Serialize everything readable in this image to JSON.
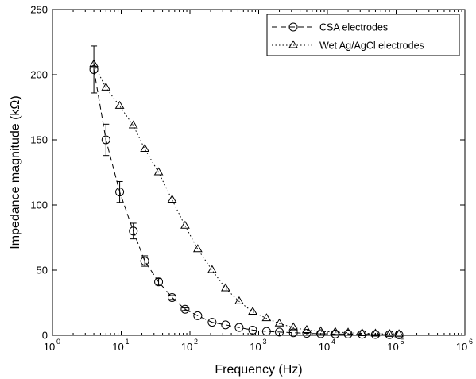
{
  "chart_data": {
    "type": "line",
    "title": "",
    "xlabel": "Frequency (Hz)",
    "ylabel": "Impedance magnitude (kΩ)",
    "xscale": "log",
    "xlim": [
      1,
      1000000
    ],
    "ylim": [
      0,
      250
    ],
    "x_ticks": [
      {
        "base": "10",
        "exp": "0"
      },
      {
        "base": "10",
        "exp": "1"
      },
      {
        "base": "10",
        "exp": "2"
      },
      {
        "base": "10",
        "exp": "3"
      },
      {
        "base": "10",
        "exp": "4"
      },
      {
        "base": "10",
        "exp": "5"
      },
      {
        "base": "10",
        "exp": "6"
      }
    ],
    "y_ticks": [
      "0",
      "50",
      "100",
      "150",
      "200",
      "250"
    ],
    "grid": false,
    "legend_position": "top-right",
    "colors": {
      "line": "#000000",
      "background": "#ffffff"
    },
    "series": [
      {
        "name": "CSA electrodes",
        "line_style": "dashed",
        "marker": "circle",
        "x": [
          4,
          6,
          9.5,
          15,
          22,
          35,
          55,
          85,
          130,
          210,
          330,
          520,
          820,
          1300,
          2000,
          3200,
          5000,
          8000,
          13000,
          20000,
          32000,
          50000,
          80000,
          110000
        ],
        "y": [
          204,
          150,
          110,
          80,
          57,
          41,
          29,
          20,
          15,
          10,
          8,
          6,
          4,
          3,
          2.5,
          2,
          1.5,
          1.2,
          1,
          1,
          0.8,
          0.6,
          0.5,
          0.4
        ],
        "error": [
          18,
          12,
          8,
          6,
          4,
          2.5,
          1.5,
          1,
          0.5,
          0.4,
          0.3,
          0.2,
          0.2,
          0.2,
          0.1,
          0.1,
          0.1,
          0.1,
          0.1,
          0.1,
          0.1,
          0.1,
          0.1,
          0.1
        ]
      },
      {
        "name": "Wet Ag/AgCl electrodes",
        "line_style": "dotted",
        "marker": "triangle",
        "x": [
          4,
          6,
          9.5,
          15,
          22,
          35,
          55,
          85,
          130,
          210,
          330,
          520,
          820,
          1300,
          2000,
          3200,
          5000,
          8000,
          13000,
          20000,
          32000,
          50000,
          80000,
          110000
        ],
        "y": [
          208,
          190,
          176,
          161,
          143,
          125,
          104,
          84,
          66,
          50,
          36,
          26,
          18,
          13,
          9,
          6,
          4,
          3,
          2.5,
          2,
          1.5,
          1.2,
          1,
          0.8
        ],
        "error": [
          0,
          0,
          0,
          0,
          0,
          0,
          0,
          0,
          0,
          0,
          0,
          0,
          0,
          0,
          0,
          0,
          0,
          0,
          0,
          0,
          0,
          0,
          0,
          0
        ]
      }
    ]
  }
}
